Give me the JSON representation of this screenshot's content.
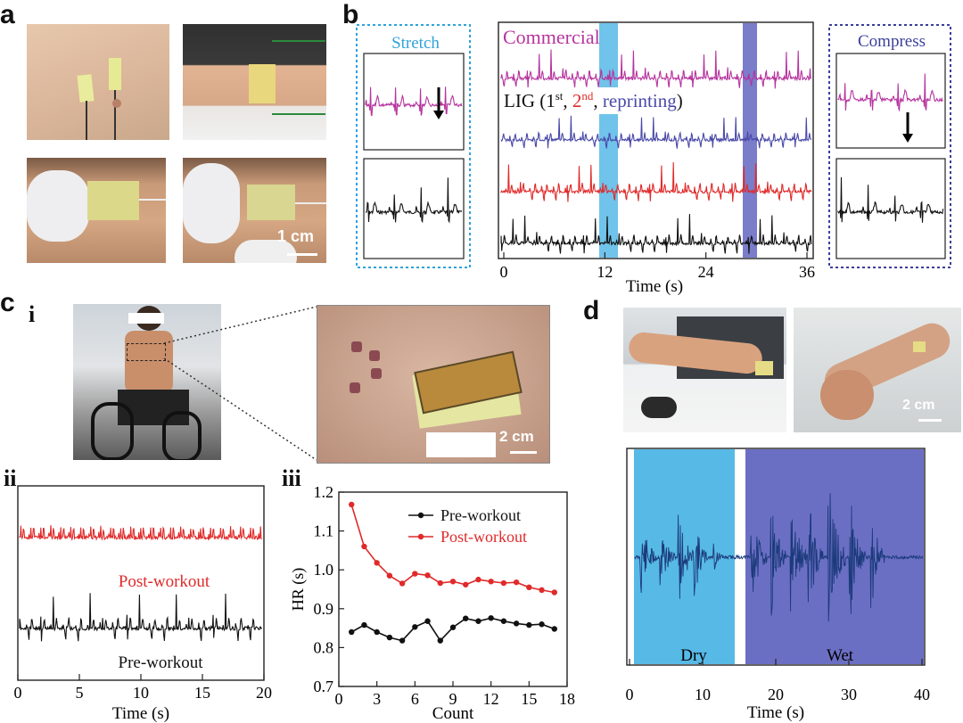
{
  "panels": {
    "a": "a",
    "b": "b",
    "c": "c",
    "d": "d",
    "ci": "i",
    "cii": "ii",
    "ciii": "iii"
  },
  "scalebars": {
    "a": "1 cm",
    "ci": "2 cm",
    "d": "2 cm"
  },
  "colors": {
    "commercial": "#b6349f",
    "lig1": "#4a49a8",
    "lig2": "#e02a2a",
    "lig3": "#111111",
    "stretch_box": "#2fa3d8",
    "compress_box": "#3a3f9a",
    "dry_band": "#57b9e6",
    "wet_band": "#6b6fc4",
    "post": "#e02a2a",
    "pre": "#111111"
  },
  "panel_b": {
    "stretch_title": "Stretch",
    "compress_title": "Compress",
    "commercial_label": "Commercial",
    "lig_label": {
      "prefix": "LIG (1",
      "sup1": "st",
      "sep1": ", ",
      "n2": "2",
      "sup2": "nd",
      "sep2": ", ",
      "reprint": "reprinting",
      "suffix": ")"
    },
    "xlabel": "Time (s)",
    "xticks": [
      "0",
      "12",
      "24",
      "36"
    ]
  },
  "panel_cii": {
    "post_label": "Post-workout",
    "pre_label": "Pre-workout",
    "xlabel": "Time (s)",
    "xticks": [
      "0",
      "5",
      "10",
      "15",
      "20"
    ]
  },
  "panel_d": {
    "dry_label": "Dry",
    "wet_label": "Wet",
    "xlabel": "Time (s)",
    "xticks": [
      "0",
      "10",
      "20",
      "30",
      "40"
    ]
  },
  "chart_data": {
    "type": "line",
    "xlabel": "Count",
    "ylabel": "HR (s)",
    "xlim": [
      0,
      18
    ],
    "ylim": [
      0.7,
      1.2
    ],
    "xticks": [
      "0",
      "3",
      "6",
      "9",
      "12",
      "15",
      "18"
    ],
    "yticks": [
      "0.7",
      "0.8",
      "0.9",
      "1.0",
      "1.1",
      "1.2"
    ],
    "legend": "top-right",
    "x": [
      1,
      2,
      3,
      4,
      5,
      6,
      7,
      8,
      9,
      10,
      11,
      12,
      13,
      14,
      15,
      16,
      17
    ],
    "series": [
      {
        "name": "Pre-workout",
        "color": "#111111",
        "values": [
          0.84,
          0.858,
          0.84,
          0.826,
          0.818,
          0.853,
          0.868,
          0.818,
          0.852,
          0.875,
          0.868,
          0.876,
          0.868,
          0.862,
          0.858,
          0.86,
          0.848
        ]
      },
      {
        "name": "Post-workout",
        "color": "#e02a2a",
        "values": [
          1.168,
          1.06,
          1.018,
          0.985,
          0.965,
          0.99,
          0.986,
          0.966,
          0.97,
          0.962,
          0.975,
          0.97,
          0.966,
          0.968,
          0.955,
          0.948,
          0.942
        ]
      }
    ]
  }
}
